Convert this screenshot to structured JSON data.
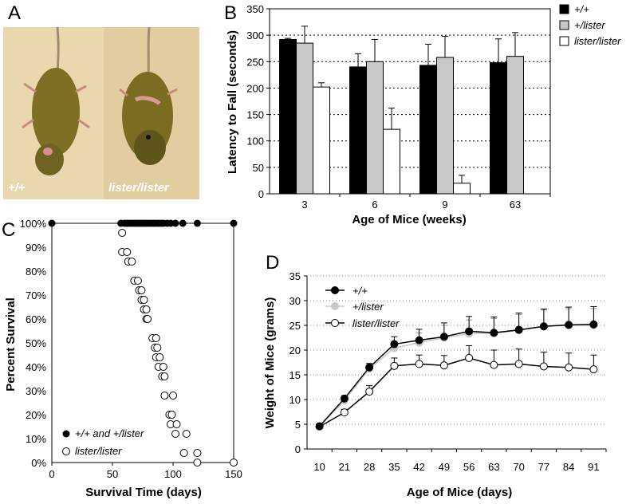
{
  "panels": {
    "a": {
      "label": "A",
      "photo_left_caption": "+/+",
      "photo_right_caption": "lister/lister"
    },
    "b": {
      "label": "B"
    },
    "c": {
      "label": "C"
    },
    "d": {
      "label": "D"
    }
  },
  "colors": {
    "wt": "#000000",
    "het": "#c8c8c8",
    "mut": "#ffffff",
    "photo_bg": "#e6d3a8",
    "mouse_body": "#7d7024"
  },
  "chart_data": [
    {
      "id": "B",
      "type": "bar",
      "title": "",
      "xlabel": "Age of Mice (weeks)",
      "ylabel": "Latency to Fall (seconds)",
      "categories": [
        "3",
        "6",
        "9",
        "63"
      ],
      "ylim": [
        0,
        350
      ],
      "yticks": [
        0,
        50,
        100,
        150,
        200,
        250,
        300,
        350
      ],
      "grid": "dotted-horizontal",
      "legend_position": "right",
      "series": [
        {
          "name": "+/+",
          "values": [
            292,
            240,
            243,
            248
          ],
          "errors": [
            2,
            25,
            40,
            45
          ]
        },
        {
          "name": "+/lister",
          "values": [
            285,
            250,
            258,
            260
          ],
          "errors": [
            32,
            42,
            40,
            45
          ]
        },
        {
          "name": "lister/lister",
          "values": [
            202,
            122,
            20,
            null
          ],
          "errors": [
            8,
            40,
            15,
            null
          ]
        }
      ]
    },
    {
      "id": "C",
      "type": "scatter",
      "title": "",
      "xlabel": "Survival Time (days)",
      "ylabel": "Percent Survival",
      "xlim": [
        0,
        150
      ],
      "xticks": [
        0,
        50,
        100,
        150
      ],
      "ylim": [
        0,
        100
      ],
      "yticks": [
        "0%",
        "10%",
        "20%",
        "30%",
        "40%",
        "50%",
        "60%",
        "70%",
        "80%",
        "90%",
        "100%"
      ],
      "legend_position": "bottom-left",
      "series": [
        {
          "name": "+/+ and +/lister",
          "points": [
            [
              0,
              100
            ],
            [
              57,
              100
            ],
            [
              60,
              100
            ],
            [
              62,
              100
            ],
            [
              64,
              100
            ],
            [
              66,
              100
            ],
            [
              68,
              100
            ],
            [
              70,
              100
            ],
            [
              72,
              100
            ],
            [
              74,
              100
            ],
            [
              76,
              100
            ],
            [
              78,
              100
            ],
            [
              80,
              100
            ],
            [
              82,
              100
            ],
            [
              84,
              100
            ],
            [
              86,
              100
            ],
            [
              88,
              100
            ],
            [
              90,
              100
            ],
            [
              92,
              100
            ],
            [
              95,
              100
            ],
            [
              98,
              100
            ],
            [
              102,
              100
            ],
            [
              108,
              100
            ],
            [
              120,
              100
            ],
            [
              150,
              100
            ]
          ]
        },
        {
          "name": "lister/lister",
          "points": [
            [
              58,
              96
            ],
            [
              58,
              88
            ],
            [
              62,
              88
            ],
            [
              63,
              84
            ],
            [
              66,
              84
            ],
            [
              68,
              76
            ],
            [
              71,
              76
            ],
            [
              72,
              72
            ],
            [
              74,
              72
            ],
            [
              74,
              68
            ],
            [
              76,
              68
            ],
            [
              76,
              64
            ],
            [
              78,
              64
            ],
            [
              78,
              60
            ],
            [
              79,
              60
            ],
            [
              83,
              52
            ],
            [
              86,
              52
            ],
            [
              85,
              48
            ],
            [
              87,
              48
            ],
            [
              86,
              44
            ],
            [
              89,
              44
            ],
            [
              88,
              40
            ],
            [
              92,
              40
            ],
            [
              91,
              36
            ],
            [
              93,
              36
            ],
            [
              93,
              28
            ],
            [
              100,
              28
            ],
            [
              97,
              20
            ],
            [
              99,
              20
            ],
            [
              98,
              16
            ],
            [
              103,
              16
            ],
            [
              102,
              12
            ],
            [
              111,
              12
            ],
            [
              109,
              4
            ],
            [
              120,
              4
            ],
            [
              120,
              0
            ],
            [
              150,
              0
            ]
          ]
        }
      ]
    },
    {
      "id": "D",
      "type": "line",
      "title": "",
      "xlabel": "Age of Mice (days)",
      "ylabel": "Weight of Mice (grams)",
      "x": [
        10,
        21,
        28,
        35,
        42,
        49,
        56,
        63,
        70,
        77,
        84,
        91
      ],
      "ylim": [
        0,
        35
      ],
      "yticks": [
        0,
        5,
        10,
        15,
        20,
        25,
        30,
        35
      ],
      "grid": "dotted-horizontal",
      "legend_position": "top-left",
      "series": [
        {
          "name": "+/+",
          "values": [
            4.6,
            10.2,
            16.5,
            21.2,
            22.0,
            22.7,
            23.8,
            23.5,
            24.1,
            24.8,
            25.1,
            25.2
          ],
          "errors": [
            0.5,
            0.6,
            0.8,
            1.5,
            2.2,
            2.8,
            3.0,
            3.2,
            3.4,
            3.5,
            3.6,
            3.6
          ]
        },
        {
          "name": "+/lister",
          "values": [
            4.5,
            9.8,
            16.2,
            20.4,
            21.5,
            22.5,
            23.3,
            23.4,
            24.0,
            24.8,
            25.0,
            25.0
          ],
          "errors": [
            0.5,
            0.6,
            0.8,
            1.4,
            2.0,
            2.5,
            2.8,
            3.0,
            3.2,
            3.3,
            3.4,
            3.4
          ]
        },
        {
          "name": "lister/lister",
          "values": [
            4.5,
            7.4,
            11.6,
            16.8,
            17.2,
            16.9,
            18.4,
            17.0,
            17.2,
            16.7,
            16.5,
            16.1
          ],
          "errors": [
            0.5,
            0.6,
            1.2,
            1.6,
            1.8,
            2.0,
            2.5,
            3.0,
            3.0,
            2.9,
            2.9,
            2.9
          ]
        }
      ]
    }
  ]
}
